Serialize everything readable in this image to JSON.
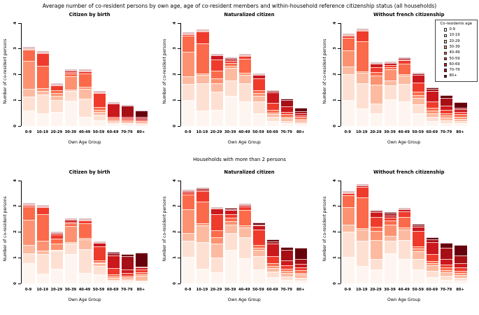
{
  "page": {
    "title": "Average number of co-resident persons by own age, age of co-resident members and within-household reference citizenship status (all households)",
    "subtitle": "Households with more than 2 persons"
  },
  "axes": {
    "xlabel": "Own Age Group",
    "ylabel": "Number of co-resident persons",
    "yticks": [
      "0",
      "1",
      "2",
      "3",
      "4"
    ],
    "ylim": [
      0,
      4
    ],
    "grid": false
  },
  "categories": [
    "0-9",
    "10-19",
    "20-29",
    "30-39",
    "40-49",
    "50-59",
    "60-69",
    "70-79",
    "80+"
  ],
  "legend": {
    "title": "Co-residents age",
    "labels": [
      "0-9",
      "10-19",
      "20-29",
      "30-39",
      "40-49",
      "50-59",
      "60-69",
      "70-79",
      "80+"
    ],
    "position": "top-right-panel"
  },
  "palette": [
    "#FFF5F0",
    "#FEE0D2",
    "#FCBBA1",
    "#FC9272",
    "#FB6A4A",
    "#EF3B2C",
    "#CB181D",
    "#A50F15",
    "#67000D"
  ],
  "chart_data": [
    {
      "type": "bar",
      "stacked": true,
      "row": 0,
      "title": "Citizen by birth",
      "xlabel": "Own Age Group",
      "ylabel": "Number of co-resident persons",
      "ylim": [
        0,
        4
      ],
      "show_legend": false,
      "categories": [
        "0-9",
        "10-19",
        "20-29",
        "30-39",
        "40-49",
        "50-59",
        "60-69",
        "70-79",
        "80+"
      ],
      "series": [
        {
          "name": "0-9",
          "values": [
            0.6,
            0.49,
            0.54,
            0.97,
            0.35,
            0.22,
            0.08,
            0.05,
            0.04
          ]
        },
        {
          "name": "10-19",
          "values": [
            0.55,
            0.74,
            0.47,
            0.38,
            0.7,
            0.21,
            0.07,
            0.05,
            0.04
          ]
        },
        {
          "name": "20-29",
          "values": [
            0.3,
            0.13,
            0.16,
            0.07,
            0.4,
            0.12,
            0.05,
            0.05,
            0.04
          ]
        },
        {
          "name": "30-39",
          "values": [
            1.08,
            0.1,
            0.1,
            0.51,
            0.07,
            0.07,
            0.05,
            0.04,
            0.04
          ]
        },
        {
          "name": "40-49",
          "values": [
            0.44,
            0.87,
            0.11,
            0.12,
            0.53,
            0.11,
            0.06,
            0.05,
            0.04
          ]
        },
        {
          "name": "50-59",
          "values": [
            0.03,
            0.5,
            0.19,
            0.05,
            0.08,
            0.54,
            0.05,
            0.06,
            0.05
          ]
        },
        {
          "name": "60-69",
          "values": [
            0.02,
            0.03,
            0.03,
            0.05,
            0.02,
            0.03,
            0.52,
            0.06,
            0.05
          ]
        },
        {
          "name": "70-79",
          "values": [
            0.01,
            0.02,
            0.02,
            0.02,
            0.01,
            0.02,
            0.03,
            0.42,
            0.05
          ]
        },
        {
          "name": "80+",
          "values": [
            0.01,
            0.01,
            0.02,
            0.01,
            0.01,
            0.01,
            0.02,
            0.02,
            0.26
          ]
        }
      ]
    },
    {
      "type": "bar",
      "stacked": true,
      "row": 0,
      "title": "Naturalized citizen",
      "xlabel": "Own Age Group",
      "ylabel": "Number of co-resident persons",
      "ylim": [
        0,
        4
      ],
      "show_legend": false,
      "categories": [
        "0-9",
        "10-19",
        "20-29",
        "30-39",
        "40-49",
        "50-59",
        "60-69",
        "70-79",
        "80+"
      ],
      "series": [
        {
          "name": "0-9",
          "values": [
            1.02,
            0.6,
            0.63,
            1.17,
            0.95,
            0.5,
            0.2,
            0.1,
            0.08
          ]
        },
        {
          "name": "10-19",
          "values": [
            0.61,
            1.05,
            0.7,
            0.61,
            0.7,
            0.45,
            0.15,
            0.1,
            0.07
          ]
        },
        {
          "name": "20-29",
          "values": [
            0.3,
            0.34,
            0.32,
            0.47,
            0.35,
            0.23,
            0.1,
            0.1,
            0.07
          ]
        },
        {
          "name": "30-39",
          "values": [
            0.95,
            0.05,
            0.2,
            0.1,
            0.08,
            0.1,
            0.07,
            0.06,
            0.06
          ]
        },
        {
          "name": "40-49",
          "values": [
            0.62,
            1.18,
            0.3,
            0.1,
            0.52,
            0.1,
            0.1,
            0.09,
            0.07
          ]
        },
        {
          "name": "50-59",
          "values": [
            0.06,
            0.45,
            0.43,
            0.07,
            0.12,
            0.47,
            0.28,
            0.1,
            0.07
          ]
        },
        {
          "name": "60-69",
          "values": [
            0.04,
            0.03,
            0.18,
            0.08,
            0.04,
            0.13,
            0.4,
            0.2,
            0.08
          ]
        },
        {
          "name": "70-79",
          "values": [
            0.03,
            0.03,
            0.01,
            0.03,
            0.02,
            0.04,
            0.06,
            0.25,
            0.06
          ]
        },
        {
          "name": "80+",
          "values": [
            0.02,
            0.02,
            0.01,
            0.02,
            0.02,
            0.03,
            0.04,
            0.05,
            0.16
          ]
        }
      ]
    },
    {
      "type": "bar",
      "stacked": true,
      "row": 0,
      "title": "Without french citizenship",
      "xlabel": "Own Age Group",
      "ylabel": "Number of co-resident persons",
      "ylim": [
        0,
        4
      ],
      "show_legend": true,
      "categories": [
        "0-9",
        "10-19",
        "20-29",
        "30-39",
        "40-49",
        "50-59",
        "60-69",
        "70-79",
        "80+"
      ],
      "series": [
        {
          "name": "0-9",
          "values": [
            1.02,
            0.67,
            0.5,
            1.03,
            0.95,
            0.5,
            0.2,
            0.12,
            0.1
          ]
        },
        {
          "name": "10-19",
          "values": [
            1.0,
            1.0,
            0.37,
            0.55,
            0.68,
            0.35,
            0.15,
            0.1,
            0.08
          ]
        },
        {
          "name": "20-29",
          "values": [
            0.28,
            0.4,
            0.73,
            0.2,
            0.32,
            0.25,
            0.15,
            0.1,
            0.1
          ]
        },
        {
          "name": "30-39",
          "values": [
            0.65,
            0.06,
            0.35,
            0.42,
            0.07,
            0.1,
            0.1,
            0.08,
            0.07
          ]
        },
        {
          "name": "40-49",
          "values": [
            0.47,
            1.17,
            0.15,
            0.1,
            0.4,
            0.13,
            0.1,
            0.1,
            0.1
          ]
        },
        {
          "name": "50-59",
          "values": [
            0.08,
            0.4,
            0.2,
            0.07,
            0.13,
            0.35,
            0.25,
            0.12,
            0.1
          ]
        },
        {
          "name": "60-69",
          "values": [
            0.04,
            0.04,
            0.12,
            0.08,
            0.05,
            0.3,
            0.4,
            0.18,
            0.1
          ]
        },
        {
          "name": "70-79",
          "values": [
            0.02,
            0.03,
            0.03,
            0.03,
            0.03,
            0.05,
            0.1,
            0.3,
            0.07
          ]
        },
        {
          "name": "80+",
          "values": [
            0.01,
            0.01,
            0.02,
            0.02,
            0.02,
            0.05,
            0.05,
            0.1,
            0.21
          ]
        }
      ]
    },
    {
      "type": "bar",
      "stacked": true,
      "row": 1,
      "title": "Citizen by birth",
      "xlabel": "Own Age Group",
      "ylabel": "Number of co-resident persons",
      "ylim": [
        0,
        4
      ],
      "show_legend": false,
      "categories": [
        "0-9",
        "10-19",
        "20-29",
        "30-39",
        "40-49",
        "50-59",
        "60-69",
        "70-79",
        "80+"
      ],
      "series": [
        {
          "name": "0-9",
          "values": [
            0.78,
            0.38,
            0.57,
            1.15,
            0.4,
            0.35,
            0.08,
            0.07,
            0.07
          ]
        },
        {
          "name": "10-19",
          "values": [
            0.39,
            0.77,
            0.7,
            0.4,
            0.93,
            0.33,
            0.07,
            0.06,
            0.05
          ]
        },
        {
          "name": "20-29",
          "values": [
            0.33,
            0.13,
            0.05,
            0.07,
            0.39,
            0.1,
            0.07,
            0.07,
            0.18
          ]
        },
        {
          "name": "30-39",
          "values": [
            0.98,
            0.39,
            0.23,
            0.61,
            0.06,
            0.05,
            0.06,
            0.05,
            0.05
          ]
        },
        {
          "name": "40-49",
          "values": [
            0.52,
            1.03,
            0.2,
            0.1,
            0.57,
            0.07,
            0.07,
            0.05,
            0.1
          ]
        },
        {
          "name": "50-59",
          "values": [
            0.05,
            0.27,
            0.15,
            0.07,
            0.1,
            0.55,
            0.25,
            0.1,
            0.1
          ]
        },
        {
          "name": "60-69",
          "values": [
            0.02,
            0.03,
            0.07,
            0.07,
            0.02,
            0.13,
            0.5,
            0.15,
            0.07
          ]
        },
        {
          "name": "70-79",
          "values": [
            0.02,
            0.01,
            0.02,
            0.02,
            0.02,
            0.03,
            0.07,
            0.5,
            0.03
          ]
        },
        {
          "name": "80+",
          "values": [
            0.01,
            0.01,
            0.01,
            0.02,
            0.01,
            0.02,
            0.05,
            0.1,
            0.55
          ]
        }
      ]
    },
    {
      "type": "bar",
      "stacked": true,
      "row": 1,
      "title": "Naturalized citizen",
      "xlabel": "Own Age Group",
      "ylabel": "Number of co-resident persons",
      "ylim": [
        0,
        4
      ],
      "show_legend": false,
      "categories": [
        "0-9",
        "10-19",
        "20-29",
        "30-39",
        "40-49",
        "50-59",
        "60-69",
        "70-79",
        "80+"
      ],
      "series": [
        {
          "name": "0-9",
          "values": [
            1.03,
            0.58,
            0.43,
            1.3,
            0.97,
            0.55,
            0.25,
            0.15,
            0.12
          ]
        },
        {
          "name": "10-19",
          "values": [
            0.62,
            1.02,
            0.57,
            0.65,
            0.83,
            0.5,
            0.2,
            0.13,
            0.1
          ]
        },
        {
          "name": "20-29",
          "values": [
            0.3,
            0.67,
            0.55,
            0.35,
            0.37,
            0.25,
            0.15,
            0.12,
            0.13
          ]
        },
        {
          "name": "30-39",
          "values": [
            0.93,
            0.07,
            0.25,
            0.12,
            0.08,
            0.1,
            0.08,
            0.08,
            0.07
          ]
        },
        {
          "name": "40-49",
          "values": [
            0.59,
            0.84,
            0.28,
            0.13,
            0.6,
            0.1,
            0.1,
            0.1,
            0.1
          ]
        },
        {
          "name": "50-59",
          "values": [
            0.08,
            0.42,
            0.62,
            0.15,
            0.15,
            0.6,
            0.27,
            0.12,
            0.1
          ]
        },
        {
          "name": "60-69",
          "values": [
            0.05,
            0.06,
            0.2,
            0.15,
            0.05,
            0.15,
            0.5,
            0.2,
            0.13
          ]
        },
        {
          "name": "70-79",
          "values": [
            0.02,
            0.04,
            0.04,
            0.05,
            0.02,
            0.05,
            0.08,
            0.4,
            0.2
          ]
        },
        {
          "name": "80+",
          "values": [
            0.03,
            0.03,
            0.03,
            0.03,
            0.02,
            0.06,
            0.08,
            0.13,
            0.43
          ]
        }
      ]
    },
    {
      "type": "bar",
      "stacked": true,
      "row": 1,
      "title": "Without french citizenship",
      "xlabel": "Own Age Group",
      "ylabel": "Number of co-resident persons",
      "ylim": [
        0,
        4
      ],
      "show_legend": false,
      "categories": [
        "0-9",
        "10-19",
        "20-29",
        "30-39",
        "40-49",
        "50-59",
        "60-69",
        "70-79",
        "80+"
      ],
      "series": [
        {
          "name": "0-9",
          "values": [
            1.03,
            0.67,
            0.55,
            1.17,
            0.95,
            0.55,
            0.25,
            0.15,
            0.12
          ]
        },
        {
          "name": "10-19",
          "values": [
            0.99,
            0.98,
            0.4,
            0.48,
            0.73,
            0.4,
            0.25,
            0.15,
            0.1
          ]
        },
        {
          "name": "20-29",
          "values": [
            0.28,
            0.45,
            0.75,
            0.2,
            0.42,
            0.3,
            0.2,
            0.15,
            0.1
          ]
        },
        {
          "name": "30-39",
          "values": [
            0.67,
            0.06,
            0.35,
            0.45,
            0.07,
            0.1,
            0.1,
            0.07,
            0.08
          ]
        },
        {
          "name": "40-49",
          "values": [
            0.46,
            1.19,
            0.15,
            0.15,
            0.43,
            0.1,
            0.08,
            0.1,
            0.1
          ]
        },
        {
          "name": "50-59",
          "values": [
            0.07,
            0.4,
            0.4,
            0.1,
            0.2,
            0.6,
            0.27,
            0.13,
            0.12
          ]
        },
        {
          "name": "60-69",
          "values": [
            0.05,
            0.05,
            0.18,
            0.1,
            0.08,
            0.15,
            0.45,
            0.2,
            0.18
          ]
        },
        {
          "name": "70-79",
          "values": [
            0.02,
            0.04,
            0.04,
            0.07,
            0.04,
            0.06,
            0.12,
            0.45,
            0.3
          ]
        },
        {
          "name": "80+",
          "values": [
            0.02,
            0.02,
            0.03,
            0.07,
            0.03,
            0.05,
            0.09,
            0.17,
            0.41
          ]
        }
      ]
    }
  ]
}
